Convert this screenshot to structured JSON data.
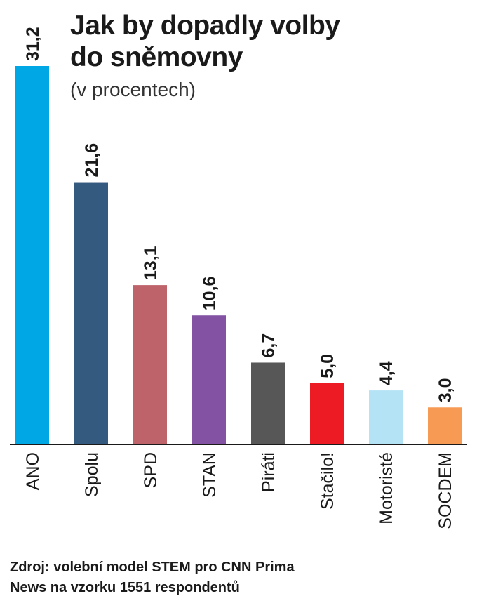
{
  "title_line1": "Jak by dopadly volby",
  "title_line2": "do sněmovny",
  "subtitle": "(v procentech)",
  "source_line1": "Zdroj: volební model STEM pro CNN Prima",
  "source_line2": "News na vzorku 1551 respondentů",
  "chart_data": {
    "type": "bar",
    "categories": [
      "ANO",
      "Spolu",
      "SPD",
      "STAN",
      "Piráti",
      "Stačilo!",
      "Motoristé",
      "SOCDEM"
    ],
    "values": [
      31.2,
      21.6,
      13.1,
      10.6,
      6.7,
      5.0,
      4.4,
      3.0
    ],
    "value_labels": [
      "31,2",
      "21,6",
      "13,1",
      "10,6",
      "6,7",
      "5,0",
      "4,4",
      "3,0"
    ],
    "colors": [
      "#00a7e5",
      "#355a80",
      "#bf636b",
      "#8452a3",
      "#575757",
      "#ed1c24",
      "#b3e3f5",
      "#f79a53"
    ],
    "title": "Jak by dopadly volby do sněmovny",
    "subtitle": "(v procentech)",
    "xlabel": "",
    "ylabel": "",
    "ylim": [
      0,
      31.2
    ],
    "grid": false,
    "legend": "none"
  }
}
